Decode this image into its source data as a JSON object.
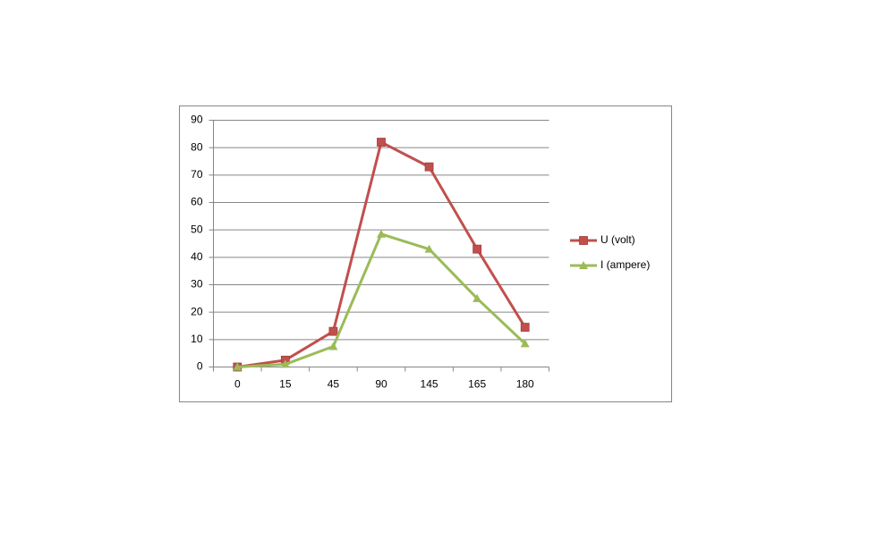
{
  "chart_data": {
    "type": "line",
    "categories": [
      "0",
      "15",
      "45",
      "90",
      "145",
      "165",
      "180"
    ],
    "series": [
      {
        "name": "U (volt)",
        "color": "#c0504d",
        "marker": "square",
        "values": [
          0,
          2.5,
          13,
          82,
          73,
          43,
          14.5
        ]
      },
      {
        "name": "I (ampere)",
        "color": "#9bbb59",
        "marker": "triangle",
        "values": [
          0,
          1,
          7.5,
          48.5,
          43,
          25,
          8.5
        ]
      }
    ],
    "ylim": [
      0,
      90
    ],
    "yticks": [
      0,
      10,
      20,
      30,
      40,
      50,
      60,
      70,
      80,
      90
    ],
    "grid": true,
    "legend": "right"
  }
}
